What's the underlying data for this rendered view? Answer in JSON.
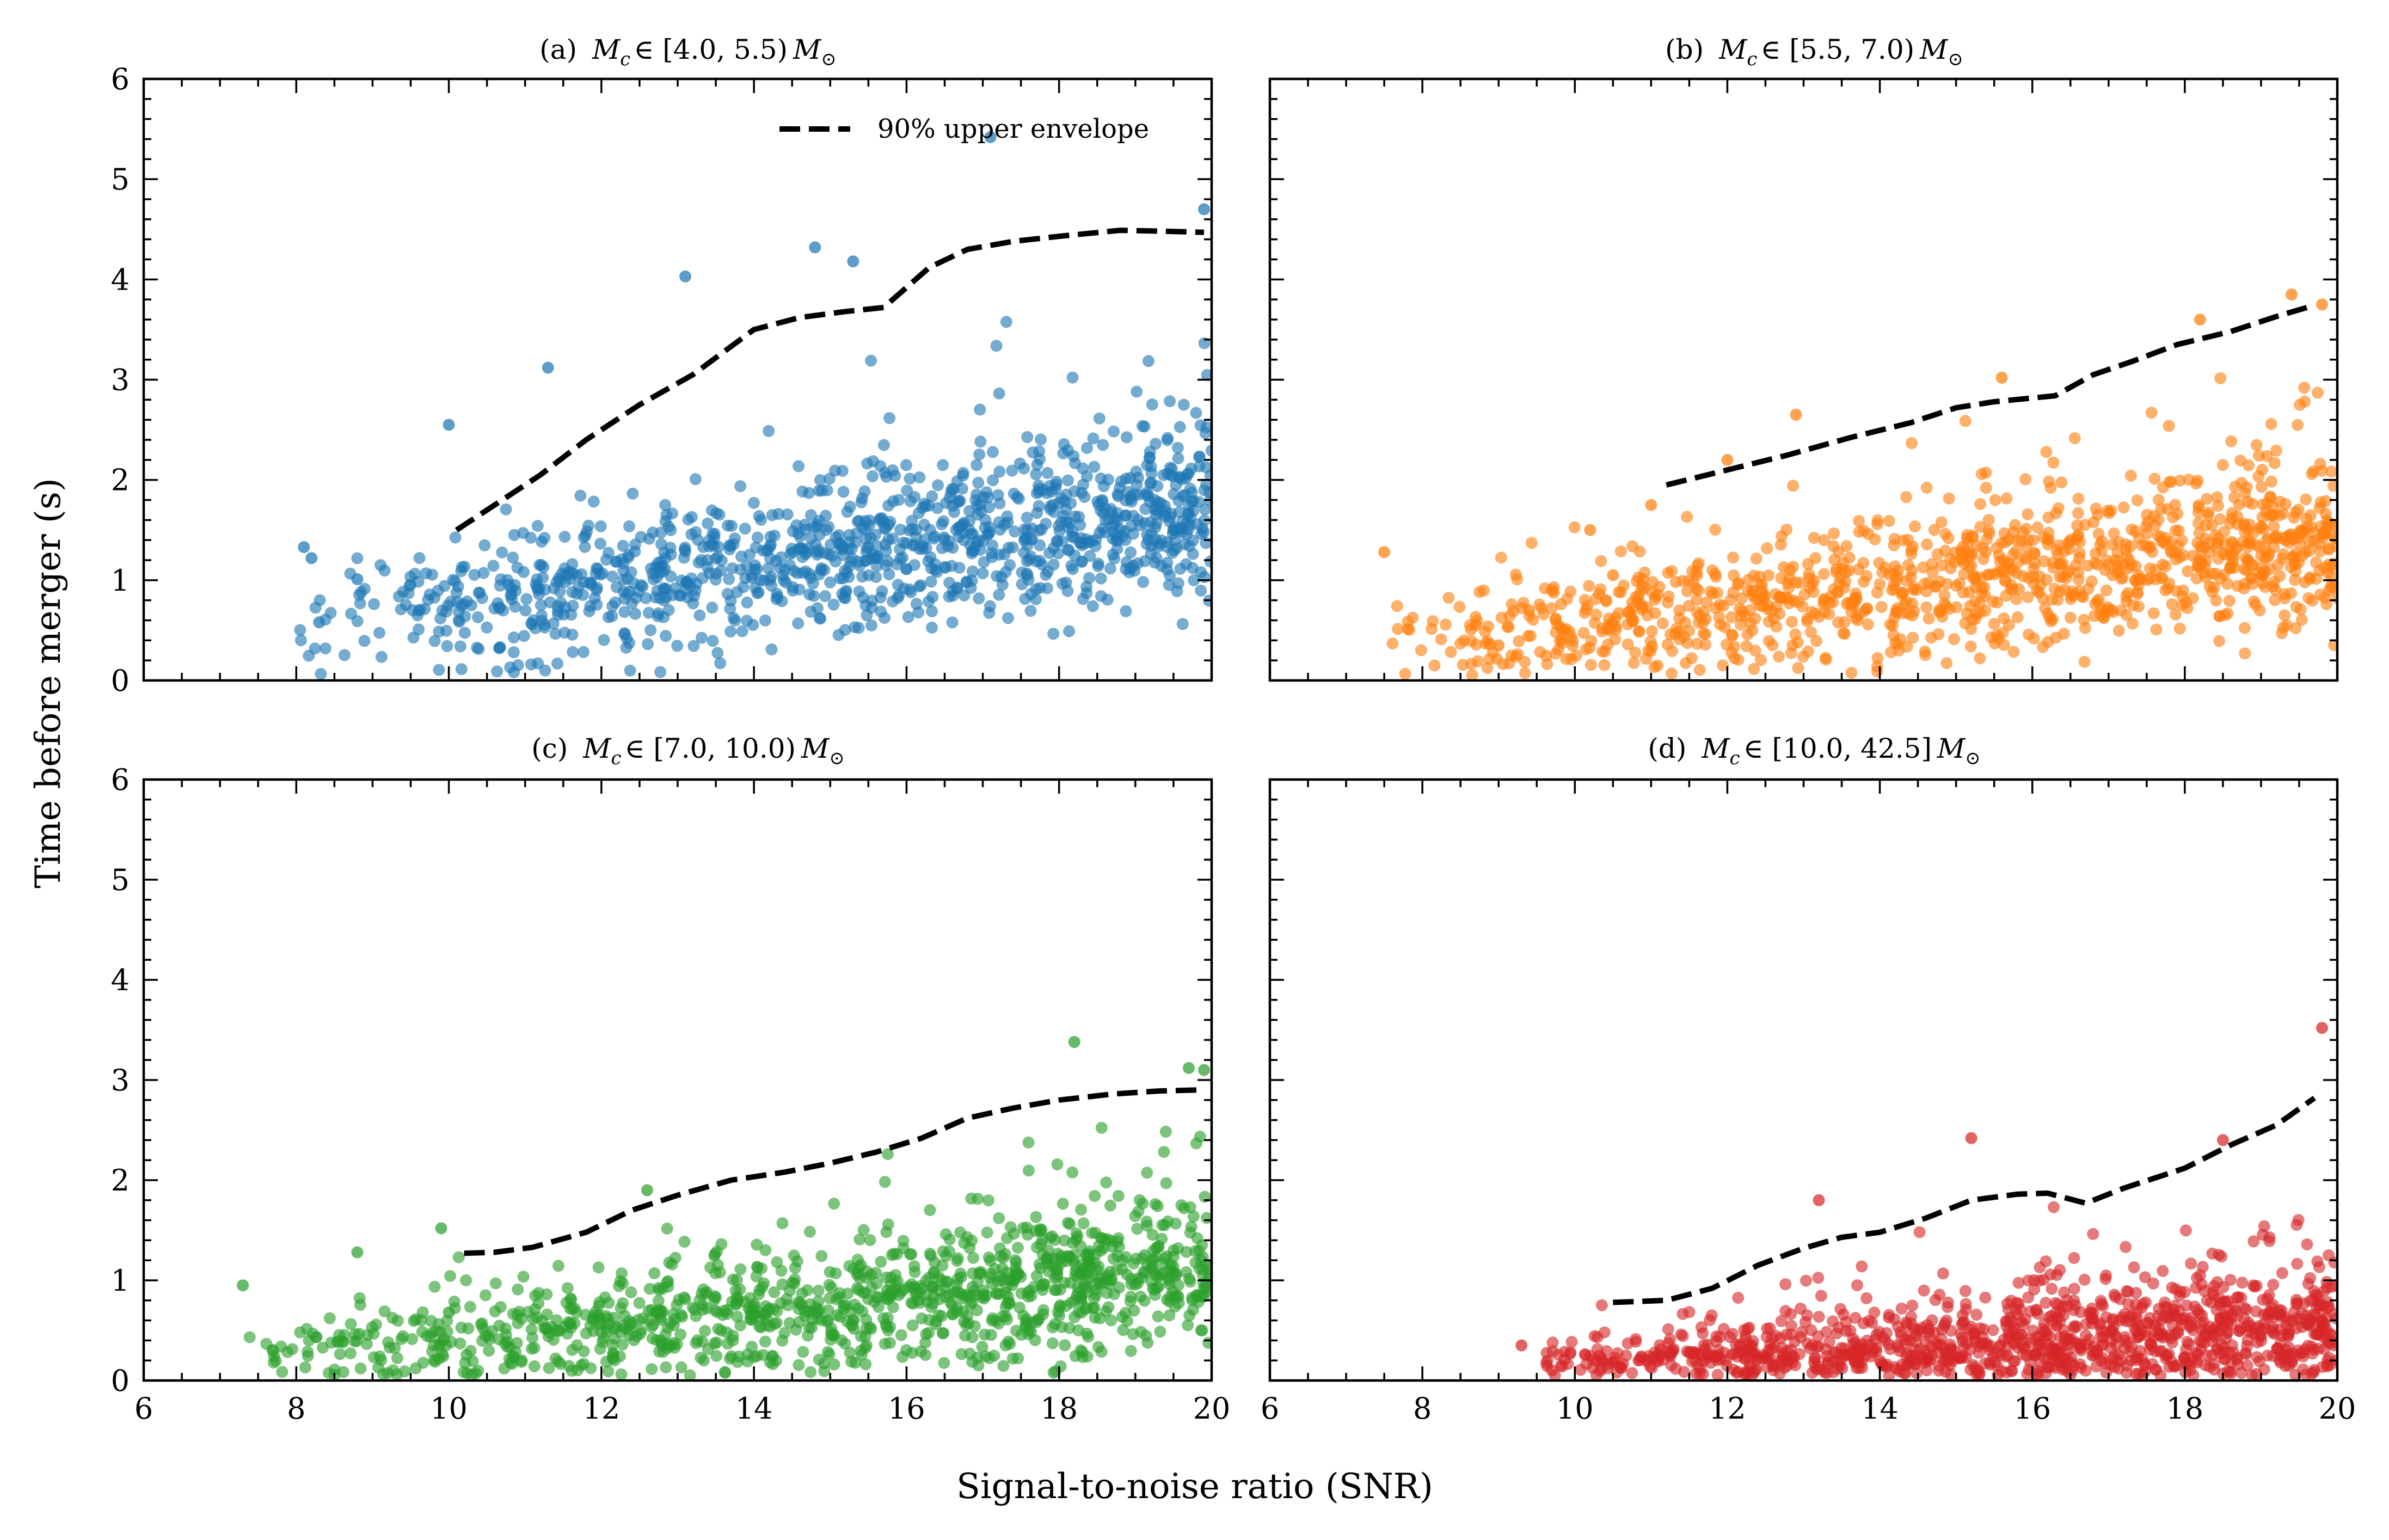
{
  "figure": {
    "xlabel": "Signal-to-noise ratio (SNR)",
    "ylabel": "Time before merger (s)"
  },
  "legend": {
    "label": "90% upper envelope",
    "style": "dashed",
    "color": "#000000"
  },
  "chart_data": [
    {
      "type": "scatter",
      "panel": "a",
      "title": "(a)  M_c ∈ [4.0, 5.5) M_⊙",
      "title_prefix": "(a)",
      "range_text": "∈ [4.0, 5.5)",
      "xlabel": "Signal-to-noise ratio (SNR)",
      "ylabel": "Time before merger (s)",
      "xlim": [
        6,
        20
      ],
      "ylim": [
        0,
        6
      ],
      "xticks": [
        6,
        8,
        10,
        12,
        14,
        16,
        18,
        20
      ],
      "yticks": [
        0,
        1,
        2,
        3,
        4,
        5,
        6
      ],
      "color": "#1f77b4",
      "series": [
        {
          "name": "events",
          "n_approx": 1200,
          "snr_min": 8.0,
          "snr_max": 20.0,
          "t_typical": [
            0.4,
            3.0
          ],
          "highlight_points": [
            [
              8.1,
              1.33
            ],
            [
              8.2,
              1.22
            ],
            [
              8.3,
              0.58
            ],
            [
              8.8,
              1.01
            ],
            [
              10.0,
              2.55
            ],
            [
              11.3,
              3.12
            ],
            [
              13.1,
              4.03
            ],
            [
              14.8,
              4.32
            ],
            [
              15.3,
              4.18
            ],
            [
              17.1,
              5.42
            ],
            [
              19.9,
              4.7
            ]
          ]
        },
        {
          "name": "90% upper envelope",
          "style": "dashed",
          "x": [
            10.1,
            10.6,
            11.2,
            11.8,
            12.5,
            13.2,
            14.0,
            14.6,
            15.2,
            15.7,
            16.3,
            16.8,
            17.4,
            18.0,
            18.8,
            19.4,
            19.9
          ],
          "y": [
            1.5,
            1.75,
            2.05,
            2.4,
            2.75,
            3.05,
            3.5,
            3.62,
            3.68,
            3.72,
            4.12,
            4.3,
            4.38,
            4.43,
            4.49,
            4.48,
            4.47
          ]
        }
      ]
    },
    {
      "type": "scatter",
      "panel": "b",
      "title": "(b)  M_c ∈ [5.5, 7.0) M_⊙",
      "title_prefix": "(b)",
      "range_text": "∈ [5.5, 7.0)",
      "xlabel": "Signal-to-noise ratio (SNR)",
      "ylabel": "",
      "xlim": [
        6,
        20
      ],
      "ylim": [
        0,
        6
      ],
      "xticks": [
        6,
        8,
        10,
        12,
        14,
        16,
        18,
        20
      ],
      "yticks": [
        0,
        1,
        2,
        3,
        4,
        5,
        6
      ],
      "color": "#ff7f0e",
      "series": [
        {
          "name": "events",
          "n_approx": 1200,
          "snr_min": 7.5,
          "snr_max": 20.0,
          "t_typical": [
            0.3,
            2.5
          ],
          "highlight_points": [
            [
              7.5,
              1.28
            ],
            [
              8.7,
              0.55
            ],
            [
              9.0,
              0.35
            ],
            [
              9.4,
              0.7
            ],
            [
              9.7,
              0.9
            ],
            [
              10.2,
              1.5
            ],
            [
              10.5,
              1.05
            ],
            [
              11.0,
              1.75
            ],
            [
              12.0,
              2.2
            ],
            [
              12.9,
              2.65
            ],
            [
              15.6,
              3.02
            ],
            [
              18.2,
              3.6
            ],
            [
              19.4,
              3.85
            ],
            [
              19.8,
              3.75
            ]
          ]
        },
        {
          "name": "90% upper envelope",
          "style": "dashed",
          "x": [
            11.2,
            12.0,
            12.8,
            13.6,
            14.4,
            15.0,
            15.5,
            16.3,
            16.8,
            17.3,
            17.9,
            18.6,
            19.2,
            19.6
          ],
          "y": [
            1.95,
            2.1,
            2.25,
            2.42,
            2.57,
            2.72,
            2.78,
            2.84,
            3.05,
            3.18,
            3.35,
            3.48,
            3.63,
            3.72
          ]
        }
      ]
    },
    {
      "type": "scatter",
      "panel": "c",
      "title": "(c)  M_c ∈ [7.0, 10.0) M_⊙",
      "title_prefix": "(c)",
      "range_text": "∈ [7.0, 10.0)",
      "xlabel": "Signal-to-noise ratio (SNR)",
      "ylabel": "Time before merger (s)",
      "xlim": [
        6,
        20
      ],
      "ylim": [
        0,
        6
      ],
      "xticks": [
        6,
        8,
        10,
        12,
        14,
        16,
        18,
        20
      ],
      "yticks": [
        0,
        1,
        2,
        3,
        4,
        5,
        6
      ],
      "color": "#2ca02c",
      "series": [
        {
          "name": "events",
          "n_approx": 1200,
          "snr_min": 7.3,
          "snr_max": 20.0,
          "t_typical": [
            0.1,
            2.0
          ],
          "highlight_points": [
            [
              7.3,
              0.95
            ],
            [
              8.8,
              1.28
            ],
            [
              9.9,
              1.52
            ],
            [
              10.0,
              0.68
            ],
            [
              12.6,
              1.9
            ],
            [
              18.2,
              3.38
            ],
            [
              19.7,
              3.12
            ],
            [
              19.9,
              3.1
            ]
          ]
        },
        {
          "name": "90% upper envelope",
          "style": "dashed",
          "x": [
            10.2,
            10.6,
            11.1,
            11.8,
            12.4,
            13.0,
            13.7,
            14.4,
            15.0,
            15.6,
            16.2,
            16.8,
            17.4,
            18.0,
            18.7,
            19.3,
            19.8
          ],
          "y": [
            1.27,
            1.28,
            1.33,
            1.48,
            1.7,
            1.85,
            2.0,
            2.08,
            2.17,
            2.28,
            2.42,
            2.62,
            2.72,
            2.8,
            2.86,
            2.89,
            2.9
          ]
        }
      ]
    },
    {
      "type": "scatter",
      "panel": "d",
      "title": "(d)  M_c ∈ [10.0, 42.5] M_⊙",
      "title_prefix": "(d)",
      "range_text": "∈ [10.0, 42.5]",
      "xlabel": "Signal-to-noise ratio (SNR)",
      "ylabel": "",
      "xlim": [
        6,
        20
      ],
      "ylim": [
        0,
        6
      ],
      "xticks": [
        6,
        8,
        10,
        12,
        14,
        16,
        18,
        20
      ],
      "yticks": [
        0,
        1,
        2,
        3,
        4,
        5,
        6
      ],
      "color": "#d62728",
      "series": [
        {
          "name": "events",
          "n_approx": 1200,
          "snr_min": 9.3,
          "snr_max": 20.0,
          "t_typical": [
            0.0,
            1.5
          ],
          "highlight_points": [
            [
              9.3,
              0.35
            ],
            [
              9.7,
              0.1
            ],
            [
              13.2,
              1.8
            ],
            [
              15.2,
              2.42
            ],
            [
              18.5,
              2.4
            ],
            [
              19.8,
              3.52
            ]
          ]
        },
        {
          "name": "90% upper envelope",
          "style": "dashed",
          "x": [
            10.5,
            11.2,
            11.8,
            12.4,
            13.0,
            13.5,
            14.0,
            14.6,
            15.2,
            15.8,
            16.2,
            16.7,
            17.2,
            18.0,
            18.6,
            19.2,
            19.7
          ],
          "y": [
            0.78,
            0.8,
            0.92,
            1.15,
            1.32,
            1.43,
            1.48,
            1.62,
            1.8,
            1.86,
            1.87,
            1.77,
            1.92,
            2.12,
            2.35,
            2.55,
            2.82
          ]
        }
      ]
    }
  ]
}
